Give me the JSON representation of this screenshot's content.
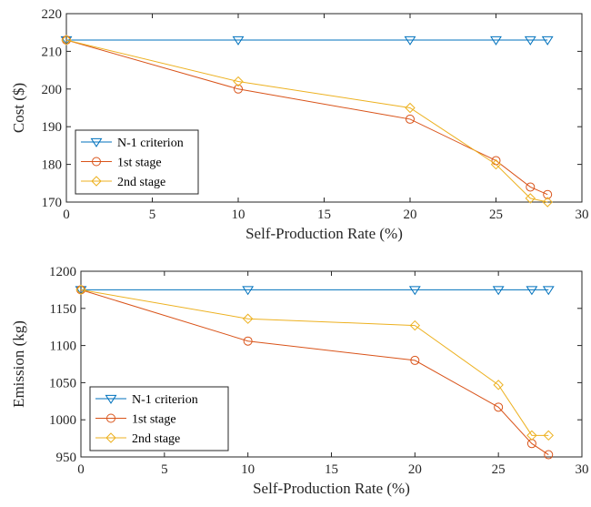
{
  "chart_data": [
    {
      "type": "line",
      "title": "",
      "xlabel": "Self-Production Rate (%)",
      "ylabel": "Cost ($)",
      "xlim": [
        0,
        30
      ],
      "ylim": [
        170,
        220
      ],
      "xticks": [
        0,
        5,
        10,
        15,
        20,
        25,
        30
      ],
      "yticks": [
        170,
        180,
        190,
        200,
        210,
        220
      ],
      "grid": false,
      "legend": "bottom-left",
      "x": [
        0,
        10,
        20,
        25,
        27,
        28
      ],
      "series": [
        {
          "name": "N-1 criterion",
          "values": [
            213,
            213,
            213,
            213,
            213,
            213
          ],
          "color": "#0072BD",
          "marker": "triangle-down"
        },
        {
          "name": "1st stage",
          "values": [
            213,
            200,
            192,
            181,
            174,
            172
          ],
          "color": "#D95319",
          "marker": "circle"
        },
        {
          "name": "2nd stage",
          "values": [
            213,
            202,
            195,
            180,
            171,
            170
          ],
          "color": "#EDB120",
          "marker": "diamond"
        }
      ]
    },
    {
      "type": "line",
      "title": "",
      "xlabel": "Self-Production Rate (%)",
      "ylabel": "Emission (kg)",
      "xlim": [
        0,
        30
      ],
      "ylim": [
        950,
        1200
      ],
      "xticks": [
        0,
        5,
        10,
        15,
        20,
        25,
        30
      ],
      "yticks": [
        950,
        1000,
        1050,
        1100,
        1150,
        1200
      ],
      "grid": false,
      "legend": "bottom-left",
      "x": [
        0,
        10,
        20,
        25,
        27,
        28
      ],
      "series": [
        {
          "name": "N-1 criterion",
          "values": [
            1175,
            1175,
            1175,
            1175,
            1175,
            1175
          ],
          "color": "#0072BD",
          "marker": "triangle-down"
        },
        {
          "name": "1st stage",
          "values": [
            1175,
            1106,
            1080,
            1017,
            968,
            953
          ],
          "color": "#D95319",
          "marker": "circle"
        },
        {
          "name": "2nd stage",
          "values": [
            1175,
            1136,
            1127,
            1047,
            979,
            979
          ],
          "color": "#EDB120",
          "marker": "diamond"
        }
      ]
    }
  ]
}
